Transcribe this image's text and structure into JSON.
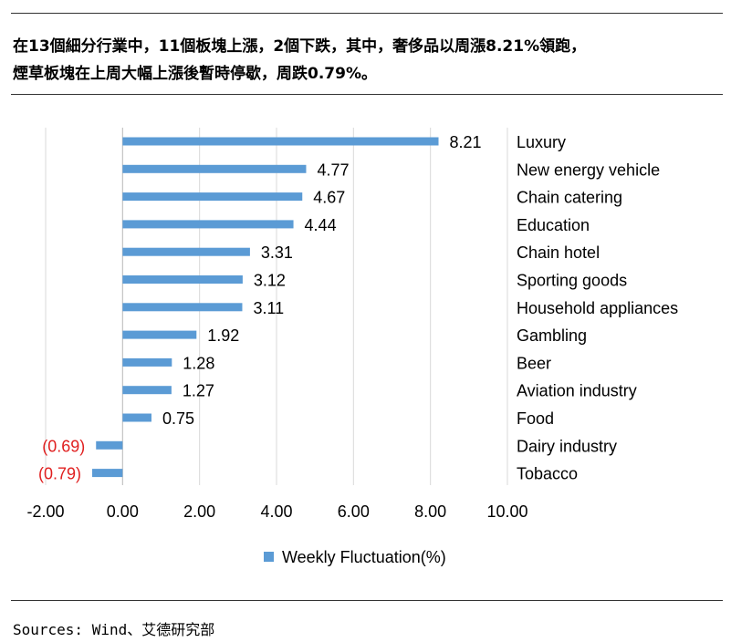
{
  "headline": {
    "line1": "在13個細分行業中，11個板塊上漲，2個下跌，其中，奢侈品以周漲8.21%領跑，",
    "line2": "煙草板塊在上周大幅上漲後暫時停歇，周跌0.79%。"
  },
  "source": "Sources: Wind、艾德研究部",
  "colors": {
    "bar": "#5b9bd5",
    "negative_label": "#e02020",
    "grid": "#d9d9d9",
    "axis": "#bfbfbf"
  },
  "chart_data": {
    "type": "bar",
    "orientation": "horizontal",
    "categories": [
      "Luxury",
      "New energy vehicle",
      "Chain catering",
      "Education",
      "Chain hotel",
      "Sporting goods",
      "Household appliances",
      "Gambling",
      "Beer",
      "Aviation industry",
      "Food",
      "Dairy industry",
      "Tobacco"
    ],
    "series": [
      {
        "name": "Weekly Fluctuation(%)",
        "values": [
          8.21,
          4.77,
          4.67,
          4.44,
          3.31,
          3.12,
          3.11,
          1.92,
          1.28,
          1.27,
          0.75,
          -0.69,
          -0.79
        ]
      }
    ],
    "value_labels": [
      "8.21",
      "4.77",
      "4.67",
      "4.44",
      "3.31",
      "3.12",
      "3.11",
      "1.92",
      "1.28",
      "1.27",
      "0.75",
      "(0.69)",
      "(0.79)"
    ],
    "xlim": [
      -2,
      10
    ],
    "xticks": [
      -2,
      0,
      2,
      4,
      6,
      8,
      10
    ],
    "xtick_labels": [
      "-2.00",
      "0.00",
      "2.00",
      "4.00",
      "6.00",
      "8.00",
      "10.00"
    ],
    "grid": true,
    "legend_position": "bottom"
  }
}
